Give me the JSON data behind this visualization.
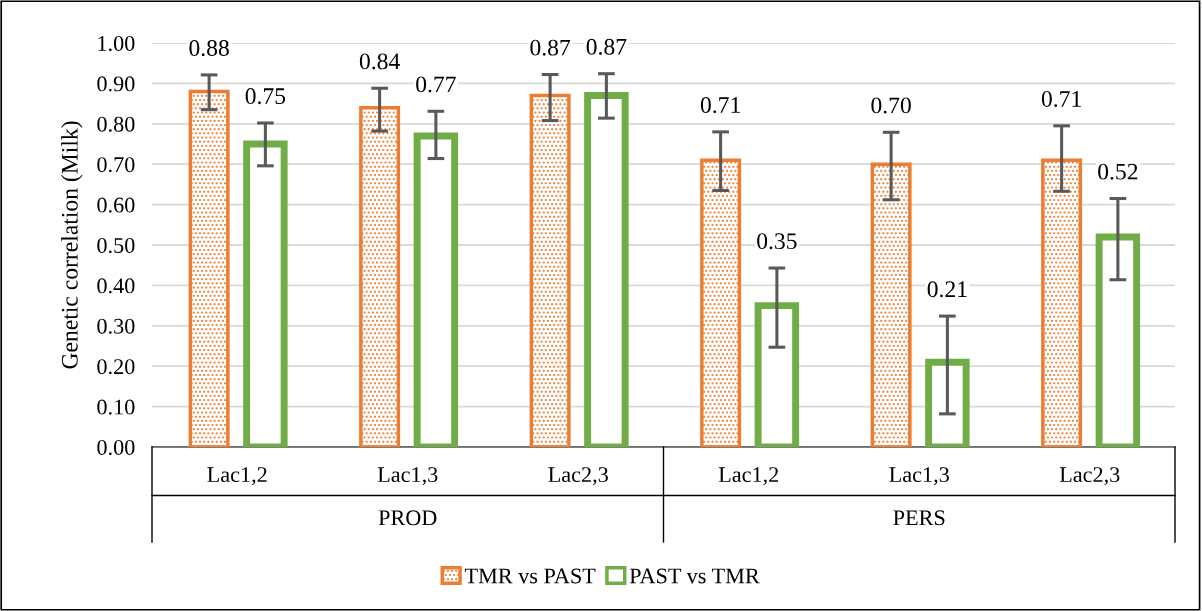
{
  "chart_data": {
    "type": "bar",
    "ylabel": "Genetic correlation (Milk)",
    "categories": [
      "Lac1,2",
      "Lac1,3",
      "Lac2,3",
      "Lac1,2",
      "Lac1,3",
      "Lac2,3"
    ],
    "series": [
      {
        "name": "TMR vs PAST",
        "color": "#ed7d31",
        "values": [
          0.88,
          0.84,
          0.87,
          0.71,
          0.7,
          0.71
        ],
        "value_labels": [
          "0.88",
          "0.84",
          "0.87",
          "0.71",
          "0.70",
          "0.71"
        ],
        "errors": [
          [
            0.835,
            0.921
          ],
          [
            0.782,
            0.888
          ],
          [
            0.808,
            0.922
          ],
          [
            0.635,
            0.78
          ],
          [
            0.612,
            0.779
          ],
          [
            0.633,
            0.795
          ]
        ]
      },
      {
        "name": "PAST vs TMR",
        "color": "#70ad47",
        "values": [
          0.75,
          0.77,
          0.87,
          0.35,
          0.21,
          0.52
        ],
        "value_labels": [
          "0.75",
          "0.77",
          "0.87",
          "0.35",
          "0.21",
          "0.52"
        ],
        "errors": [
          [
            0.696,
            0.802
          ],
          [
            0.714,
            0.831
          ],
          [
            0.814,
            0.924
          ],
          [
            0.247,
            0.443
          ],
          [
            0.082,
            0.324
          ],
          [
            0.414,
            0.615
          ]
        ]
      }
    ],
    "annotations": [
      "PROD",
      "PERS"
    ],
    "ylim": [
      0,
      1
    ],
    "yticks": [
      {
        "value": 0,
        "label": "0.00"
      },
      {
        "value": 0.1,
        "label": "0.10"
      },
      {
        "value": 0.2,
        "label": "0.20"
      },
      {
        "value": 0.3,
        "label": "0.30"
      },
      {
        "value": 0.4,
        "label": "0.40"
      },
      {
        "value": 0.5,
        "label": "0.50"
      },
      {
        "value": 0.6,
        "label": "0.60"
      },
      {
        "value": 0.7,
        "label": "0.70"
      },
      {
        "value": 0.8,
        "label": "0.80"
      },
      {
        "value": 0.9,
        "label": "0.90"
      },
      {
        "value": 1.0,
        "label": "1.00"
      }
    ],
    "grid": "y",
    "legend": "bottom"
  }
}
